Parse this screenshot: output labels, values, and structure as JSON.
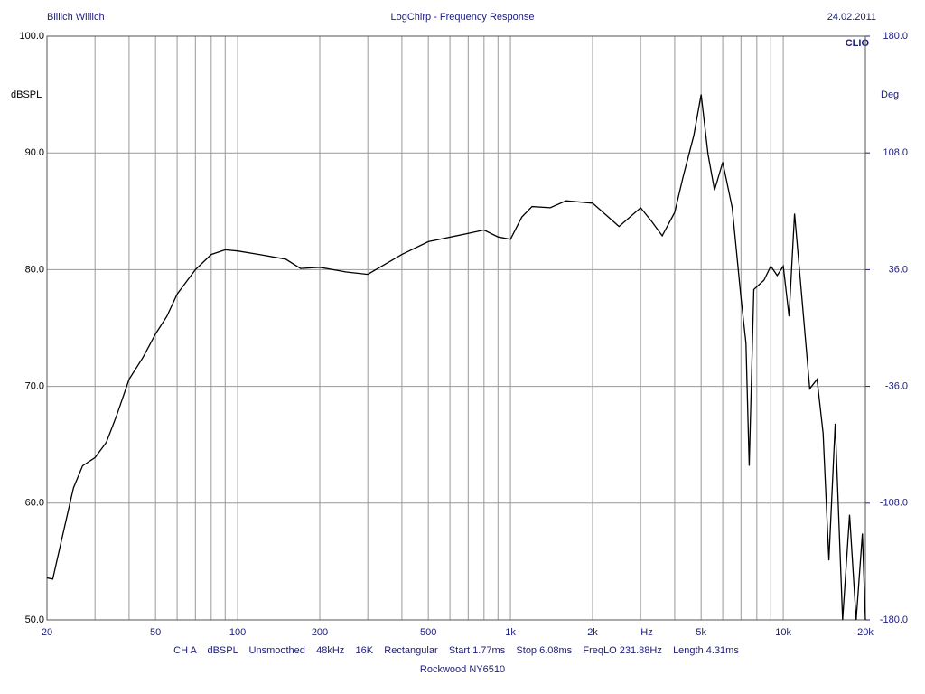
{
  "chart_data": {
    "type": "line",
    "header_left": "Billich Willich",
    "title": "LogChirp - Frequency Response",
    "header_right": "24.02.2011",
    "brand": "CLIO",
    "ylabel": "dBSPL",
    "y2label": "Deg",
    "xunit": "Hz",
    "footer": "CH A    dBSPL    Unsmoothed    48kHz    16K    Rectangular    Start 1.77ms    Stop 6.08ms    FreqLO 231.88Hz    Length 4.31ms",
    "subtitle": "Rockwood NY6510",
    "log_x": true,
    "grid": true,
    "xlim": [
      20,
      20000
    ],
    "xticks": [
      20,
      50,
      100,
      200,
      500,
      {
        "value": 1000,
        "label": "1k"
      },
      {
        "value": 2000,
        "label": "2k"
      },
      {
        "value": 5000,
        "label": "5k"
      },
      {
        "value": 10000,
        "label": "10k"
      },
      {
        "value": 20000,
        "label": "20k"
      }
    ],
    "xminorticks": [
      30,
      40,
      60,
      70,
      80,
      90,
      300,
      400,
      600,
      700,
      800,
      900,
      3000,
      4000,
      6000,
      7000,
      8000,
      9000
    ],
    "ylim": [
      50,
      100
    ],
    "yticks": [
      {
        "value": 50,
        "label": "50.0"
      },
      {
        "value": 60,
        "label": "60.0"
      },
      {
        "value": 70,
        "label": "70.0"
      },
      {
        "value": 80,
        "label": "80.0"
      },
      {
        "value": 90,
        "label": "90.0"
      },
      {
        "value": 100,
        "label": "100.0"
      }
    ],
    "y2lim": [
      -180,
      180
    ],
    "y2ticks": [
      {
        "value": -180,
        "label": "-180.0"
      },
      {
        "value": -108,
        "label": "-108.0"
      },
      {
        "value": -36,
        "label": "-36.0"
      },
      {
        "value": 36,
        "label": "36.0"
      },
      {
        "value": 108,
        "label": "108.0"
      },
      {
        "value": 180,
        "label": "180.0"
      }
    ],
    "x": [
      20,
      21,
      22.9,
      25,
      27,
      30,
      33,
      36,
      40,
      45,
      50,
      55,
      60,
      70,
      80,
      90,
      100,
      120,
      150,
      170,
      200,
      250,
      300,
      400,
      500,
      700,
      800,
      900,
      1000,
      1100,
      1200,
      1400,
      1600,
      2000,
      2500,
      3000,
      3300,
      3600,
      4000,
      4300,
      4700,
      5000,
      5300,
      5600,
      6000,
      6500,
      7000,
      7300,
      7500,
      7800,
      8500,
      9000,
      9500,
      10000,
      10500,
      11000,
      11700,
      12500,
      13300,
      14000,
      14700,
      15500,
      16500,
      17500,
      18500,
      19500,
      20000
    ],
    "series": [
      {
        "color": "#000000",
        "values": [
          53.6,
          53.5,
          57.4,
          61.3,
          63.2,
          63.9,
          65.2,
          67.5,
          70.6,
          72.5,
          74.5,
          76.0,
          77.9,
          80.0,
          81.3,
          81.7,
          81.6,
          81.3,
          80.9,
          80.1,
          80.2,
          79.8,
          79.6,
          81.3,
          82.4,
          83.1,
          83.4,
          82.8,
          82.6,
          84.5,
          85.4,
          85.3,
          85.9,
          85.7,
          83.7,
          85.3,
          84.1,
          82.9,
          84.9,
          88.0,
          91.5,
          95.0,
          89.9,
          86.8,
          89.2,
          85.3,
          77.6,
          73.7,
          63.2,
          78.3,
          79.1,
          80.3,
          79.5,
          80.3,
          76.0,
          84.8,
          77.6,
          69.8,
          70.6,
          66.0,
          55.1,
          66.8,
          50.0,
          59.0,
          50.0,
          57.4,
          50.0
        ]
      }
    ]
  }
}
